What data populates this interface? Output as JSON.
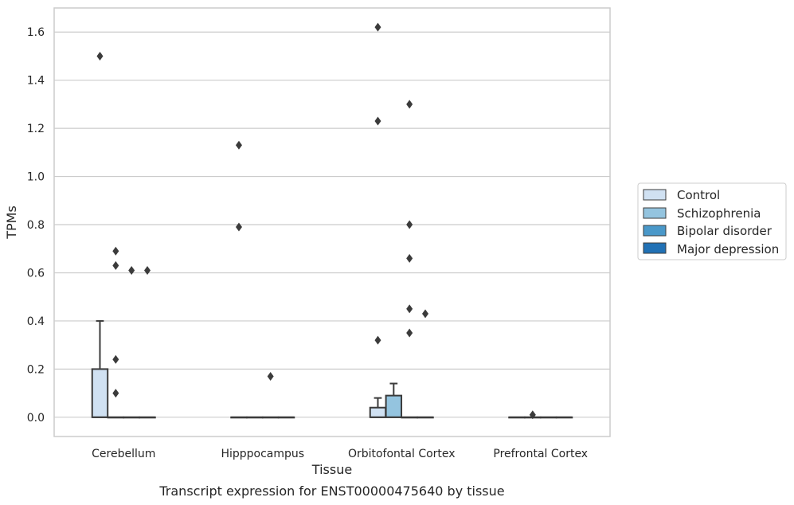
{
  "chart_data": {
    "type": "box",
    "title": "",
    "xlabel": "Tissue",
    "ylabel": "TPMs",
    "caption": "Transcript expression for ENST00000475640 by tissue",
    "categories": [
      "Cerebellum",
      "Hipppocampus",
      "Orbitofontal Cortex",
      "Prefrontal Cortex"
    ],
    "ylim": [
      -0.08,
      1.7
    ],
    "yticks": [
      "0.0",
      "0.2",
      "0.4",
      "0.6",
      "0.8",
      "1.0",
      "1.2",
      "1.4",
      "1.6"
    ],
    "grid": "horizontal",
    "legend_position": "right",
    "series": [
      {
        "name": "Control",
        "color": "#d0e1f2",
        "boxes": [
          {
            "category": "Cerebellum",
            "q1": 0.0,
            "median": 0.0,
            "q3": 0.2,
            "whisker_low": 0.0,
            "whisker_high": 0.4,
            "outliers": [
              1.5
            ]
          },
          {
            "category": "Hipppocampus",
            "q1": 0.0,
            "median": 0.0,
            "q3": 0.0,
            "whisker_low": 0.0,
            "whisker_high": 0.0,
            "outliers": [
              1.13,
              0.79
            ]
          },
          {
            "category": "Orbitofontal Cortex",
            "q1": 0.0,
            "median": 0.0,
            "q3": 0.04,
            "whisker_low": 0.0,
            "whisker_high": 0.08,
            "outliers": [
              1.62,
              1.23,
              0.32
            ]
          },
          {
            "category": "Prefrontal Cortex",
            "q1": 0.0,
            "median": 0.0,
            "q3": 0.0,
            "whisker_low": 0.0,
            "whisker_high": 0.0,
            "outliers": []
          }
        ]
      },
      {
        "name": "Schizophrenia",
        "color": "#94c4df",
        "boxes": [
          {
            "category": "Cerebellum",
            "q1": 0.0,
            "median": 0.0,
            "q3": 0.0,
            "whisker_low": 0.0,
            "whisker_high": 0.0,
            "outliers": [
              0.69,
              0.63,
              0.24,
              0.1
            ]
          },
          {
            "category": "Hipppocampus",
            "q1": 0.0,
            "median": 0.0,
            "q3": 0.0,
            "whisker_low": 0.0,
            "whisker_high": 0.0,
            "outliers": []
          },
          {
            "category": "Orbitofontal Cortex",
            "q1": 0.0,
            "median": 0.0,
            "q3": 0.09,
            "whisker_low": 0.0,
            "whisker_high": 0.14,
            "outliers": []
          },
          {
            "category": "Prefrontal Cortex",
            "q1": 0.0,
            "median": 0.0,
            "q3": 0.0,
            "whisker_low": 0.0,
            "whisker_high": 0.0,
            "outliers": [
              0.01
            ]
          }
        ]
      },
      {
        "name": "Bipolar disorder",
        "color": "#4a98c9",
        "boxes": [
          {
            "category": "Cerebellum",
            "q1": 0.0,
            "median": 0.0,
            "q3": 0.0,
            "whisker_low": 0.0,
            "whisker_high": 0.0,
            "outliers": [
              0.61
            ]
          },
          {
            "category": "Hipppocampus",
            "q1": 0.0,
            "median": 0.0,
            "q3": 0.0,
            "whisker_low": 0.0,
            "whisker_high": 0.0,
            "outliers": [
              0.17
            ]
          },
          {
            "category": "Orbitofontal Cortex",
            "q1": 0.0,
            "median": 0.0,
            "q3": 0.0,
            "whisker_low": 0.0,
            "whisker_high": 0.0,
            "outliers": [
              1.3,
              0.8,
              0.66,
              0.45,
              0.35
            ]
          },
          {
            "category": "Prefrontal Cortex",
            "q1": 0.0,
            "median": 0.0,
            "q3": 0.0,
            "whisker_low": 0.0,
            "whisker_high": 0.0,
            "outliers": []
          }
        ]
      },
      {
        "name": "Major depression",
        "color": "#2171b5",
        "boxes": [
          {
            "category": "Cerebellum",
            "q1": 0.0,
            "median": 0.0,
            "q3": 0.0,
            "whisker_low": 0.0,
            "whisker_high": 0.0,
            "outliers": [
              0.61
            ]
          },
          {
            "category": "Hipppocampus",
            "q1": 0.0,
            "median": 0.0,
            "q3": 0.0,
            "whisker_low": 0.0,
            "whisker_high": 0.0,
            "outliers": []
          },
          {
            "category": "Orbitofontal Cortex",
            "q1": 0.0,
            "median": 0.0,
            "q3": 0.0,
            "whisker_low": 0.0,
            "whisker_high": 0.0,
            "outliers": [
              0.43
            ]
          },
          {
            "category": "Prefrontal Cortex",
            "q1": 0.0,
            "median": 0.0,
            "q3": 0.0,
            "whisker_low": 0.0,
            "whisker_high": 0.0,
            "outliers": []
          }
        ]
      }
    ]
  }
}
